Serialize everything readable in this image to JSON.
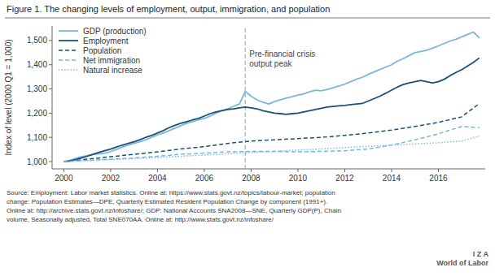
{
  "chart_data": {
    "type": "line",
    "title": "Figure 1. The changing levels of employment, output, immigration, and population",
    "y_label": "Index of level (2000 Q1 = 1,000)",
    "source": "Source: Employment: Labor market statistics. Online at: https://www.stats.govt.nz/topics/labour-market; population\nchange: Population Estimates—DPE, Quarterly Estimated Resident Population Change by component (1991+).\nOnline at: http://archive.stats.govt.nz/infoshare/; GDP: National Accounts SNA2008—SNE, Quarterly GDP(P), Chain\nvolume, Seasonally adjusted, Total SNE070AA. Online at: http://www.stats.govt.nz/infoshare/",
    "footer": "I  Z  A\nWorld of Labor",
    "xlim": [
      1999.5,
      2018.0
    ],
    "xticks": [
      2000,
      2002,
      2004,
      2006,
      2008,
      2010,
      2012,
      2014,
      2016
    ],
    "ylim": [
      970,
      1560
    ],
    "yticks": [
      {
        "value": 1000,
        "label": "1,000"
      },
      {
        "value": 1100,
        "label": "1,100"
      },
      {
        "value": 1200,
        "label": "1,200"
      },
      {
        "value": 1300,
        "label": "1,300"
      },
      {
        "value": 1400,
        "label": "1,400"
      },
      {
        "value": 1500,
        "label": "1,500"
      }
    ],
    "grid": false,
    "legend": "upper left",
    "annotations": [
      {
        "x": 2007.75,
        "text": "Pre-financial crisis\noutput peak",
        "color": "#7ab8d9"
      }
    ],
    "series": [
      {
        "name": "GDP (production)",
        "color": "#7ab8d9",
        "line_style": "solid",
        "x": [
          2000.0,
          2000.25,
          2000.5,
          2000.75,
          2001.0,
          2001.25,
          2001.5,
          2001.75,
          2002.0,
          2002.25,
          2002.5,
          2002.75,
          2003.0,
          2003.25,
          2003.5,
          2003.75,
          2004.0,
          2004.25,
          2004.5,
          2004.75,
          2005.0,
          2005.25,
          2005.5,
          2005.75,
          2006.0,
          2006.25,
          2006.5,
          2006.75,
          2007.0,
          2007.25,
          2007.5,
          2007.75,
          2008.0,
          2008.25,
          2008.5,
          2008.75,
          2009.0,
          2009.25,
          2009.5,
          2009.75,
          2010.0,
          2010.25,
          2010.5,
          2010.75,
          2011.0,
          2011.25,
          2011.5,
          2011.75,
          2012.0,
          2012.25,
          2012.5,
          2012.75,
          2013.0,
          2013.25,
          2013.5,
          2013.75,
          2014.0,
          2014.25,
          2014.5,
          2014.75,
          2015.0,
          2015.25,
          2015.5,
          2015.75,
          2016.0,
          2016.25,
          2016.5,
          2016.75,
          2017.0,
          2017.25,
          2017.5,
          2017.75
        ],
        "values": [
          1000,
          1005,
          1013,
          1020,
          1025,
          1030,
          1032,
          1035,
          1042,
          1050,
          1060,
          1068,
          1075,
          1082,
          1090,
          1100,
          1110,
          1118,
          1128,
          1138,
          1148,
          1158,
          1165,
          1172,
          1178,
          1188,
          1200,
          1210,
          1218,
          1228,
          1238,
          1290,
          1270,
          1255,
          1245,
          1238,
          1248,
          1255,
          1262,
          1268,
          1275,
          1280,
          1288,
          1295,
          1292,
          1298,
          1305,
          1312,
          1320,
          1330,
          1340,
          1348,
          1360,
          1370,
          1380,
          1390,
          1400,
          1415,
          1425,
          1438,
          1450,
          1455,
          1460,
          1468,
          1478,
          1488,
          1498,
          1505,
          1515,
          1525,
          1535,
          1510
        ]
      },
      {
        "name": "Employment",
        "color": "#1a5276",
        "line_style": "solid",
        "x": [
          2000.0,
          2000.25,
          2000.5,
          2000.75,
          2001.0,
          2001.25,
          2001.5,
          2001.75,
          2002.0,
          2002.25,
          2002.5,
          2002.75,
          2003.0,
          2003.25,
          2003.5,
          2003.75,
          2004.0,
          2004.25,
          2004.5,
          2004.75,
          2005.0,
          2005.25,
          2005.5,
          2005.75,
          2006.0,
          2006.25,
          2006.5,
          2006.75,
          2007.0,
          2007.25,
          2007.5,
          2007.75,
          2008.0,
          2008.25,
          2008.5,
          2008.75,
          2009.0,
          2009.25,
          2009.5,
          2009.75,
          2010.0,
          2010.25,
          2010.5,
          2010.75,
          2011.0,
          2011.25,
          2011.5,
          2011.75,
          2012.0,
          2012.25,
          2012.5,
          2012.75,
          2013.0,
          2013.25,
          2013.5,
          2013.75,
          2014.0,
          2014.25,
          2014.5,
          2014.75,
          2015.0,
          2015.25,
          2015.5,
          2015.75,
          2016.0,
          2016.25,
          2016.5,
          2016.75,
          2017.0,
          2017.25,
          2017.5,
          2017.75
        ],
        "values": [
          1000,
          1002,
          1008,
          1015,
          1022,
          1030,
          1038,
          1045,
          1052,
          1060,
          1068,
          1075,
          1082,
          1090,
          1100,
          1108,
          1118,
          1128,
          1140,
          1150,
          1158,
          1165,
          1172,
          1178,
          1188,
          1198,
          1205,
          1210,
          1215,
          1218,
          1222,
          1225,
          1222,
          1218,
          1210,
          1205,
          1200,
          1198,
          1195,
          1198,
          1200,
          1205,
          1210,
          1215,
          1220,
          1225,
          1228,
          1230,
          1232,
          1235,
          1238,
          1240,
          1250,
          1260,
          1270,
          1282,
          1295,
          1308,
          1318,
          1325,
          1330,
          1335,
          1330,
          1325,
          1330,
          1340,
          1355,
          1368,
          1380,
          1395,
          1410,
          1428
        ]
      },
      {
        "name": "Population",
        "color": "#1a5276",
        "line_style": "dashed",
        "x": [
          2000.0,
          2001.0,
          2002.0,
          2003.0,
          2004.0,
          2005.0,
          2006.0,
          2007.0,
          2008.0,
          2009.0,
          2010.0,
          2011.0,
          2012.0,
          2013.0,
          2014.0,
          2015.0,
          2016.0,
          2017.0,
          2017.75
        ],
        "values": [
          1000,
          1010,
          1020,
          1030,
          1040,
          1052,
          1062,
          1075,
          1085,
          1090,
          1095,
          1100,
          1108,
          1118,
          1130,
          1145,
          1162,
          1185,
          1240
        ]
      },
      {
        "name": "Net immigration",
        "color": "#7ab8d9",
        "line_style": "dashed",
        "x": [
          2000.0,
          2001.0,
          2002.0,
          2003.0,
          2004.0,
          2005.0,
          2006.0,
          2007.0,
          2008.0,
          2009.0,
          2010.0,
          2011.0,
          2012.0,
          2013.0,
          2014.0,
          2015.0,
          2016.0,
          2017.0,
          2017.75
        ],
        "values": [
          1000,
          1005,
          1010,
          1015,
          1022,
          1030,
          1035,
          1040,
          1042,
          1042,
          1040,
          1042,
          1045,
          1052,
          1068,
          1090,
          1115,
          1145,
          1140
        ]
      },
      {
        "name": "Natural increase",
        "color": "#7ab8d9",
        "line_style": "dotted",
        "x": [
          2000.0,
          2001.0,
          2002.0,
          2003.0,
          2004.0,
          2005.0,
          2006.0,
          2007.0,
          2008.0,
          2009.0,
          2010.0,
          2011.0,
          2012.0,
          2013.0,
          2014.0,
          2015.0,
          2016.0,
          2017.0,
          2017.75
        ],
        "values": [
          1000,
          1004,
          1008,
          1012,
          1017,
          1022,
          1027,
          1032,
          1038,
          1042,
          1048,
          1052,
          1058,
          1063,
          1068,
          1073,
          1078,
          1085,
          1105
        ]
      }
    ]
  }
}
